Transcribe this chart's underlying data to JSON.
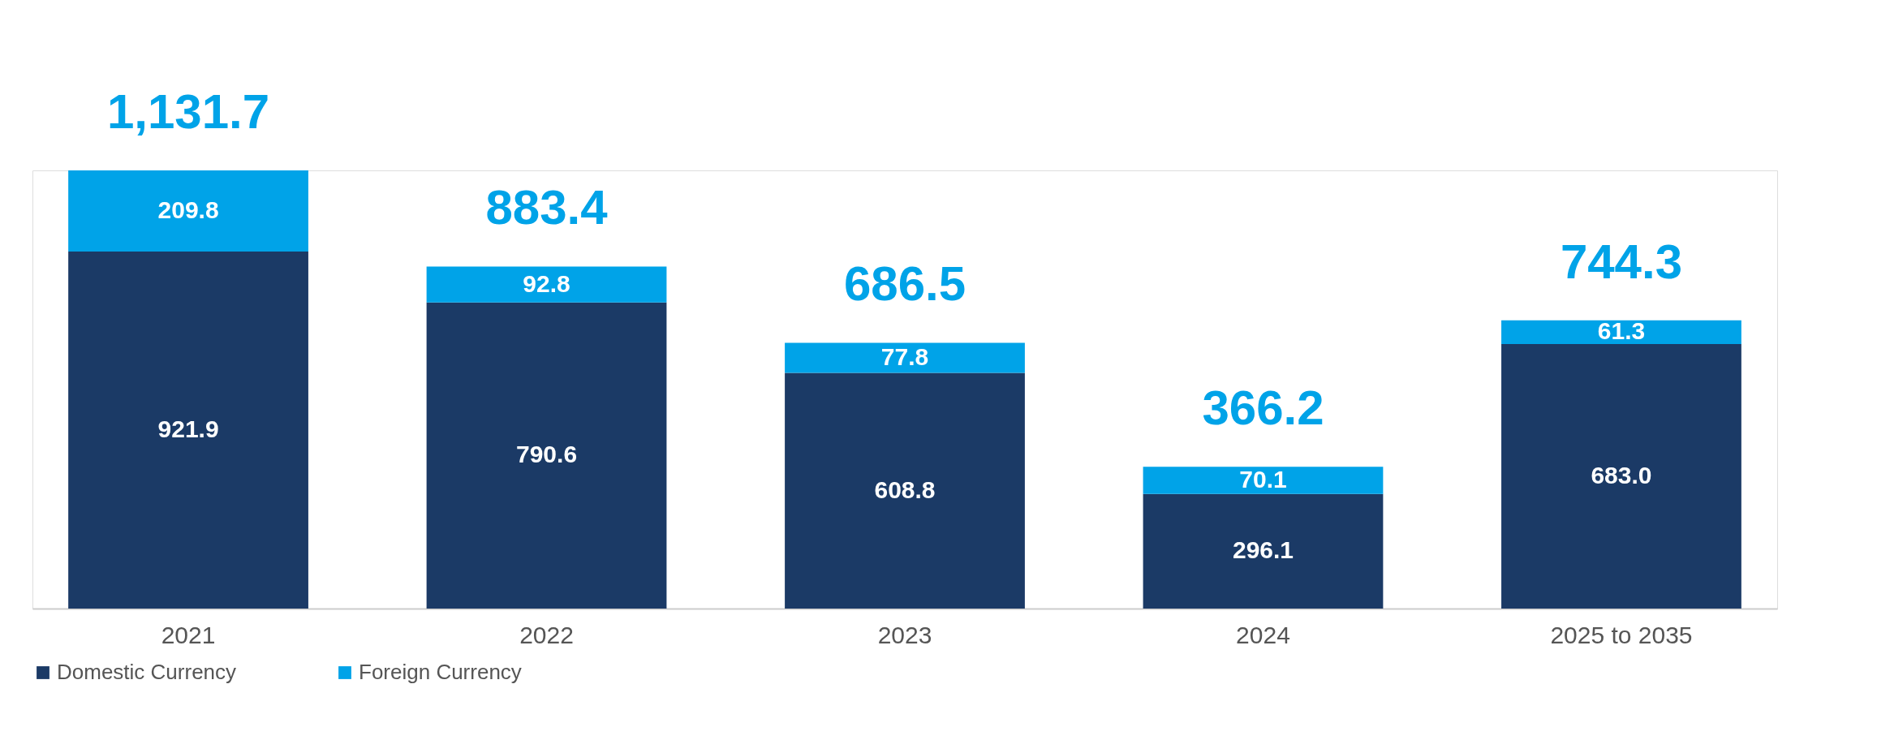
{
  "chart_data": {
    "type": "bar",
    "stacked": true,
    "tick_labels": "x",
    "categories": [
      "2021",
      "2022",
      "2023",
      "2024",
      "2025 to 2035"
    ],
    "series": [
      {
        "name": "Domestic Currency",
        "color": "#1b3a66",
        "values": [
          921.9,
          790.6,
          608.8,
          296.1,
          683.0
        ],
        "value_labels": [
          "921.9",
          "790.6",
          "608.8",
          "296.1",
          "683.0"
        ]
      },
      {
        "name": "Foreign Currency",
        "color": "#00a3e8",
        "values": [
          209.8,
          92.8,
          77.8,
          70.1,
          61.3
        ],
        "value_labels": [
          "209.8",
          "92.8",
          "77.8",
          "70.1",
          "61.3"
        ]
      }
    ],
    "totals": [
      "1,131.7",
      "883.4",
      "686.5",
      "366.2",
      "744.3"
    ],
    "legend": "bottom",
    "grid": false
  }
}
